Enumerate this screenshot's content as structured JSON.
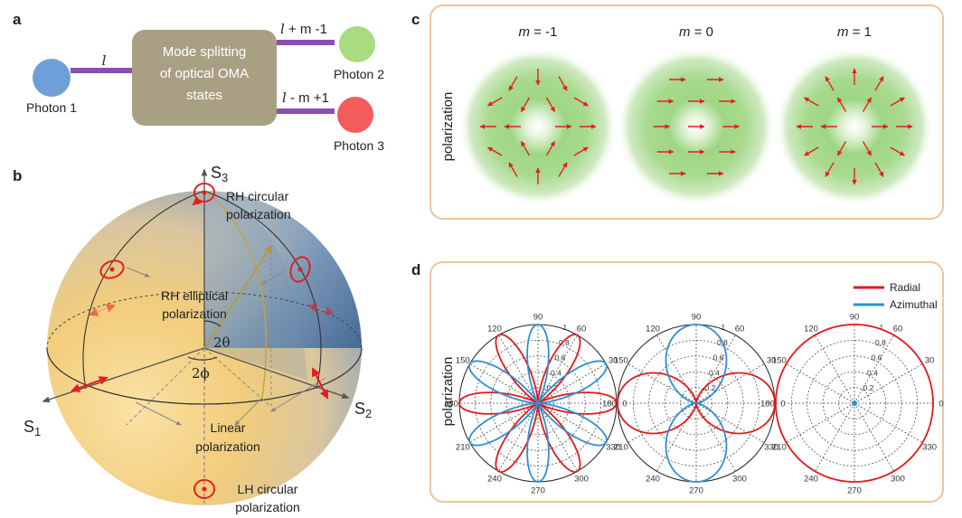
{
  "panel_a": {
    "letter": "a",
    "box_text_line1": "Mode splitting",
    "box_text_line2": "of optical OMA",
    "box_text_line3": "states",
    "label_l": "l",
    "label_top_l": "l",
    "label_top_rest": " + m -1",
    "label_bot_l": "l",
    "label_bot_rest": " - m +1",
    "photon1": "Photon 1",
    "photon2": "Photon 2",
    "photon3": "Photon 3",
    "colors": {
      "photon1": "#6f9fd8",
      "photon2": "#a9db80",
      "photon3": "#f25c5c",
      "line": "#8a4fb0",
      "box": "#a99f83"
    }
  },
  "panel_b": {
    "letter": "b",
    "s1_base": "S",
    "s1_sub": "1",
    "s2_base": "S",
    "s2_sub": "2",
    "s3_base": "S",
    "s3_sub": "3",
    "rh_circular_1": "RH circular",
    "rh_circular_2": "polarization",
    "rh_elliptical_1": "RH elliptical",
    "rh_elliptical_2": "polarization",
    "linear_1": "Linear",
    "linear_2": "polarization",
    "lh_circular_1": "LH circular",
    "lh_circular_2": "polarization",
    "angle_theta": "2θ",
    "angle_phi": "2ϕ"
  },
  "panel_c": {
    "letter": "c",
    "ylabel": "polarization",
    "titles": [
      {
        "m": "m",
        "rest": " = -1"
      },
      {
        "m": "m",
        "rest": " = 0"
      },
      {
        "m": "m",
        "rest": " = 1"
      }
    ],
    "colors": {
      "frame": "#f0c49a",
      "arrow": "#e61e1e",
      "glow": "#7cc860"
    }
  },
  "panel_d": {
    "letter": "d",
    "ylabel": "polarization",
    "legend": [
      {
        "name": "Radial",
        "color": "#e31a1c"
      },
      {
        "name": "Azimuthal",
        "color": "#2f8fd0"
      }
    ],
    "angle_ticks": [
      "0",
      "30",
      "60",
      "90",
      "120",
      "150",
      "180",
      "210",
      "240",
      "270",
      "300",
      "330"
    ],
    "radial_ticks": [
      "0.2",
      "0.4",
      "0.6",
      "0.8",
      "1"
    ]
  },
  "chart_data": [
    {
      "type": "polar",
      "series": [
        {
          "name": "Radial",
          "formula": "r = cos^2(3θ)"
        },
        {
          "name": "Azimuthal",
          "formula": "r = sin^2(3θ)"
        }
      ],
      "rlim": [
        0,
        1
      ]
    },
    {
      "type": "polar",
      "series": [
        {
          "name": "Radial",
          "formula": "r = cos^2(θ)"
        },
        {
          "name": "Azimuthal",
          "formula": "r = sin^2(θ)"
        }
      ],
      "rlim": [
        0,
        1
      ]
    },
    {
      "type": "polar",
      "series": [
        {
          "name": "Radial",
          "formula": "r = 1"
        },
        {
          "name": "Azimuthal",
          "formula": "r = 0"
        }
      ],
      "rlim": [
        0,
        1
      ]
    }
  ]
}
